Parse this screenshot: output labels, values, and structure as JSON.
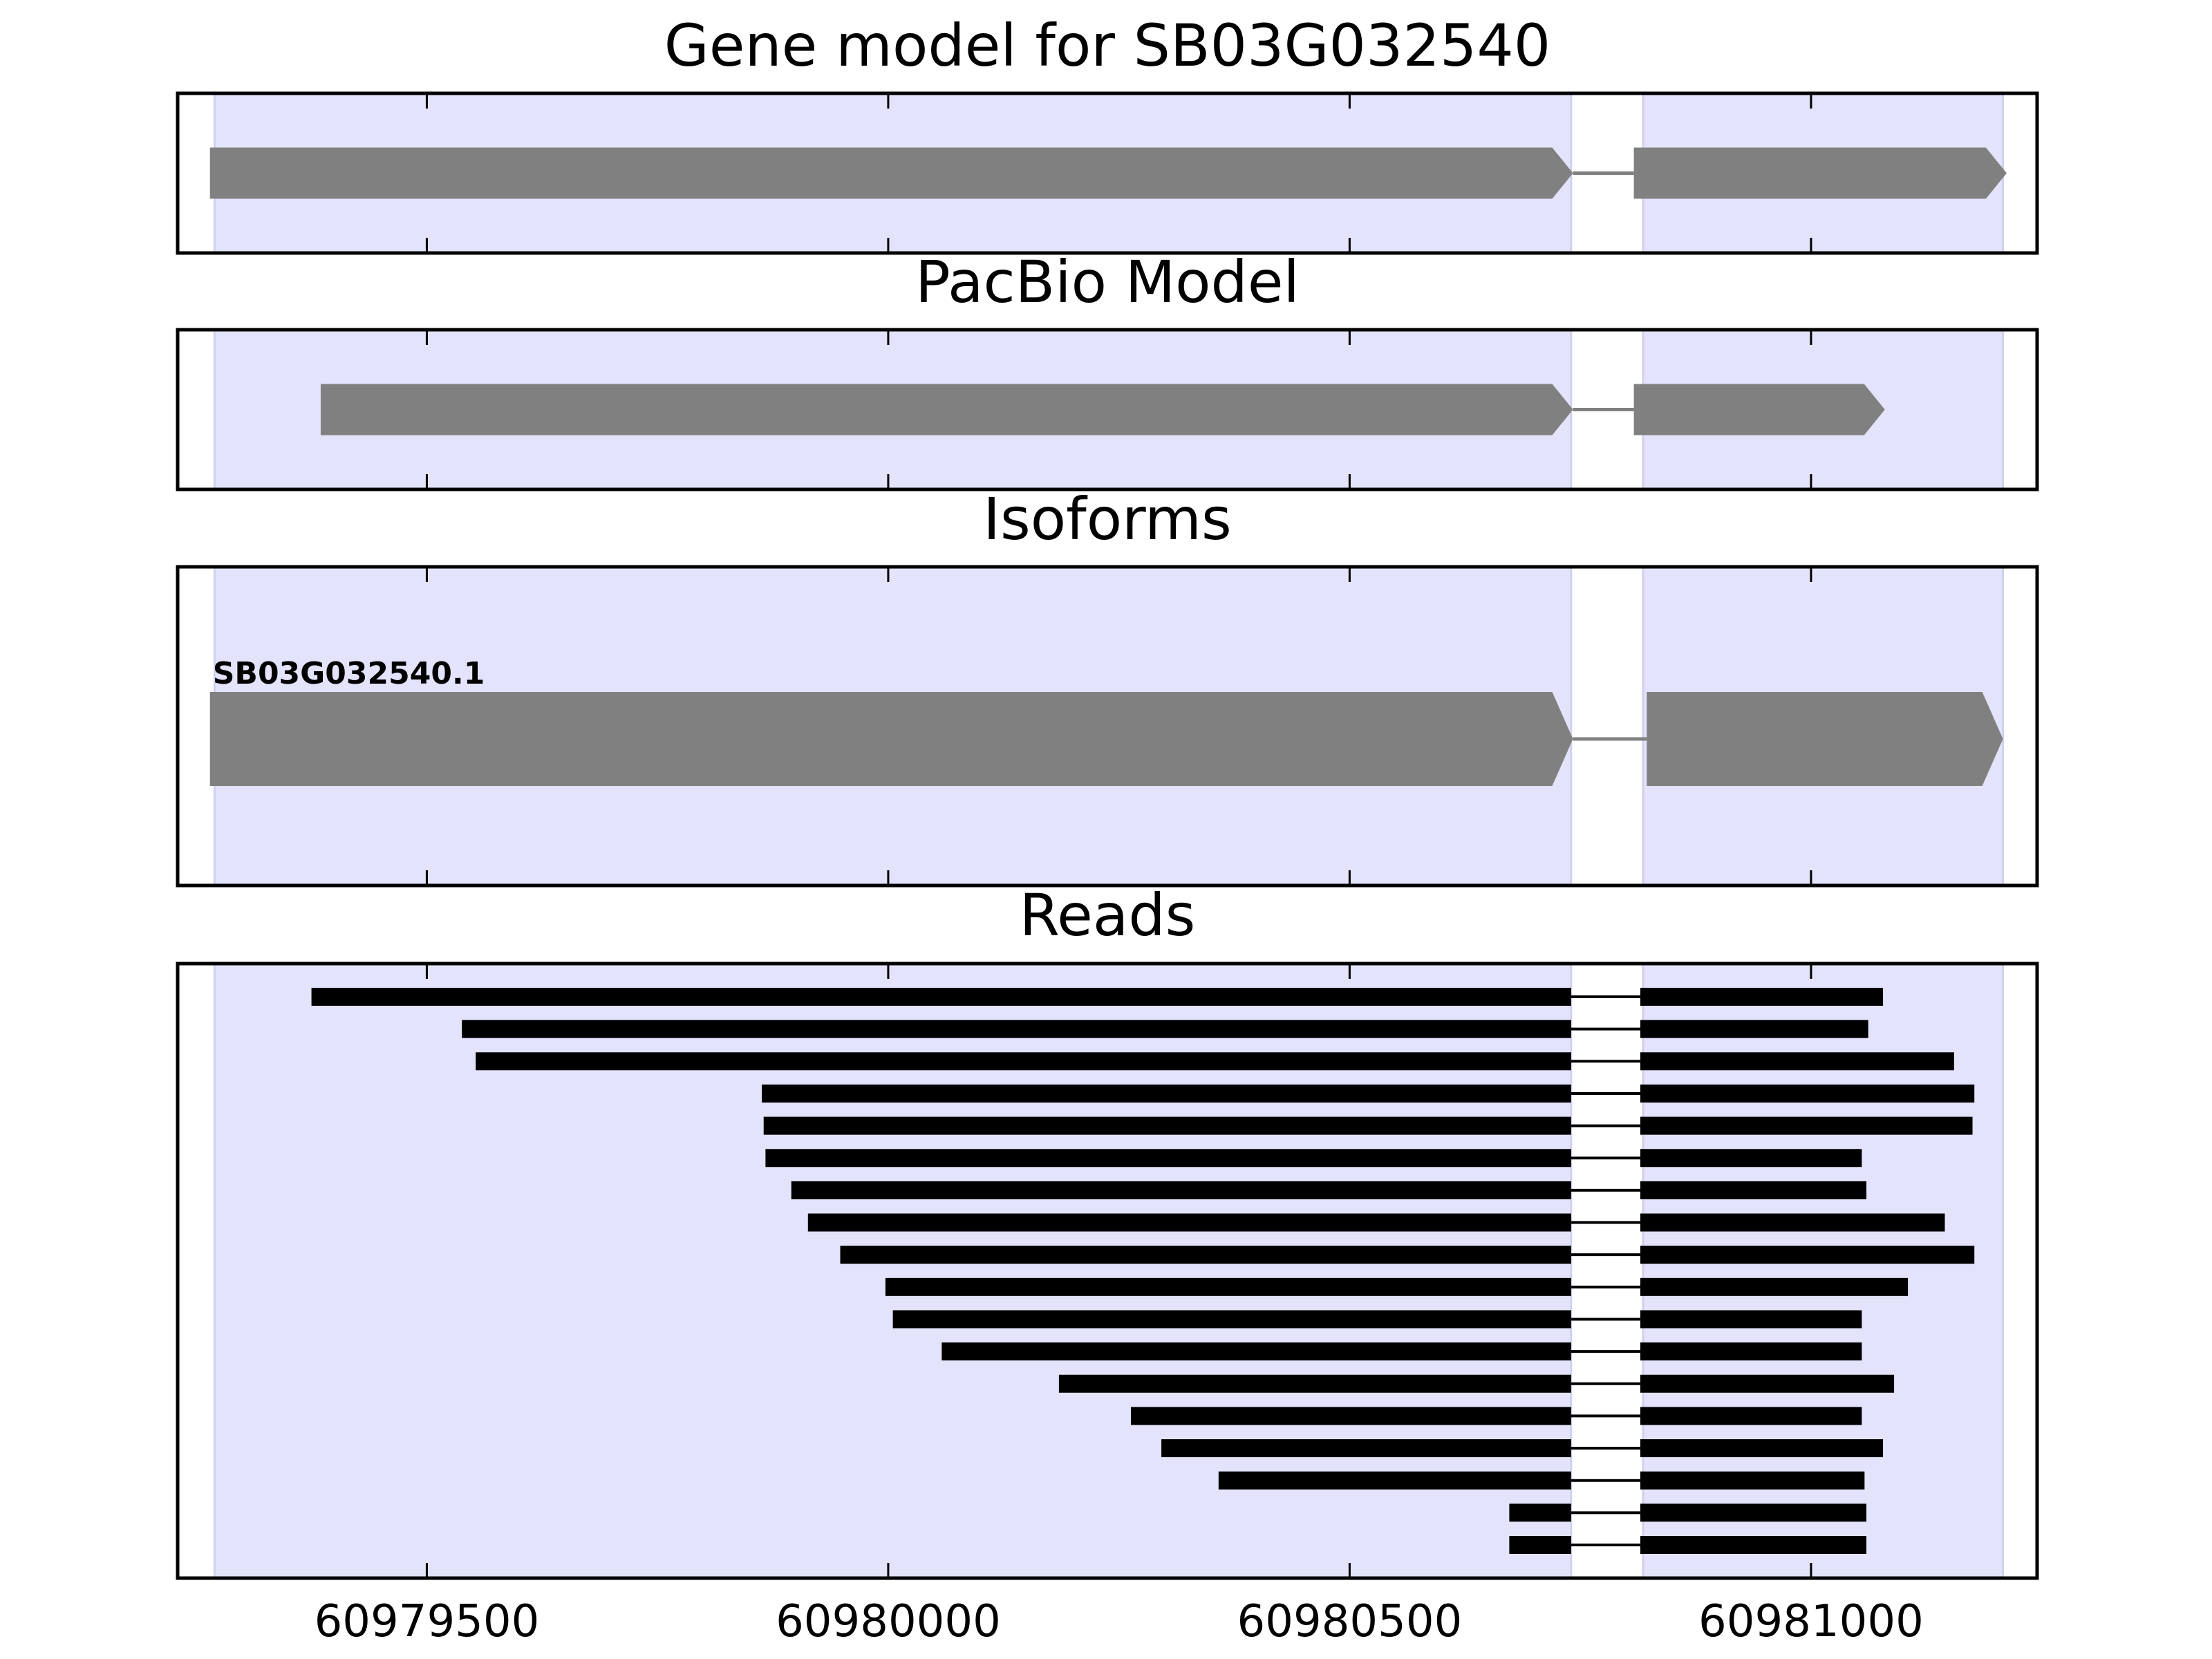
{
  "chart_data": {
    "type": "gene-model",
    "x_axis": {
      "xlim": [
        60979230,
        60981245
      ],
      "ticks": [
        60979500,
        60980000,
        60980500,
        60981000
      ],
      "tick_labels": [
        "60979500",
        "60980000",
        "60980500",
        "60981000"
      ]
    },
    "exon_regions": [
      [
        60979270,
        60980740
      ],
      [
        60980818,
        60981208
      ]
    ],
    "colors": {
      "exon_shade": "#e3e3fc",
      "exon_edge": "#d0d0ee",
      "feature": "#808080",
      "read": "#000000",
      "frame": "#000000"
    },
    "panels": [
      {
        "title": "Gene model for SB03G032540",
        "type": "gene",
        "features": [
          {
            "exons": [
              [
                60979265,
                60980742
              ],
              [
                60980808,
                60981212
              ]
            ],
            "strand": "+"
          }
        ]
      },
      {
        "title": "PacBio Model",
        "type": "gene",
        "features": [
          {
            "exons": [
              [
                60979385,
                60980742
              ],
              [
                60980808,
                60981080
              ]
            ],
            "strand": "+"
          }
        ]
      },
      {
        "title": "Isoforms",
        "type": "isoform",
        "features": [
          {
            "label": "SB03G032540.1",
            "exons": [
              [
                60979265,
                60980742
              ],
              [
                60980822,
                60981208
              ]
            ],
            "strand": "+"
          }
        ]
      },
      {
        "title": "Reads",
        "type": "reads",
        "features": [
          {
            "exons": [
              [
                60979375,
                60980740
              ],
              [
                60980815,
                60981078
              ]
            ]
          },
          {
            "exons": [
              [
                60979538,
                60980740
              ],
              [
                60980815,
                60981062
              ]
            ]
          },
          {
            "exons": [
              [
                60979553,
                60980740
              ],
              [
                60980815,
                60981155
              ]
            ]
          },
          {
            "exons": [
              [
                60979863,
                60980740
              ],
              [
                60980815,
                60981177
              ]
            ]
          },
          {
            "exons": [
              [
                60979865,
                60980740
              ],
              [
                60980815,
                60981175
              ]
            ]
          },
          {
            "exons": [
              [
                60979867,
                60980740
              ],
              [
                60980815,
                60981055
              ]
            ]
          },
          {
            "exons": [
              [
                60979895,
                60980740
              ],
              [
                60980815,
                60981060
              ]
            ]
          },
          {
            "exons": [
              [
                60979913,
                60980740
              ],
              [
                60980815,
                60981145
              ]
            ]
          },
          {
            "exons": [
              [
                60979948,
                60980740
              ],
              [
                60980815,
                60981177
              ]
            ]
          },
          {
            "exons": [
              [
                60979997,
                60980740
              ],
              [
                60980815,
                60981105
              ]
            ]
          },
          {
            "exons": [
              [
                60980005,
                60980740
              ],
              [
                60980815,
                60981055
              ]
            ]
          },
          {
            "exons": [
              [
                60980058,
                60980740
              ],
              [
                60980815,
                60981055
              ]
            ]
          },
          {
            "exons": [
              [
                60980185,
                60980740
              ],
              [
                60980815,
                60981090
              ]
            ]
          },
          {
            "exons": [
              [
                60980263,
                60980740
              ],
              [
                60980815,
                60981055
              ]
            ]
          },
          {
            "exons": [
              [
                60980296,
                60980740
              ],
              [
                60980815,
                60981078
              ]
            ]
          },
          {
            "exons": [
              [
                60980358,
                60980740
              ],
              [
                60980815,
                60981058
              ]
            ]
          },
          {
            "exons": [
              [
                60980673,
                60980740
              ],
              [
                60980815,
                60981060
              ]
            ]
          },
          {
            "exons": [
              [
                60980673,
                60980740
              ],
              [
                60980815,
                60981060
              ]
            ]
          }
        ]
      }
    ]
  }
}
